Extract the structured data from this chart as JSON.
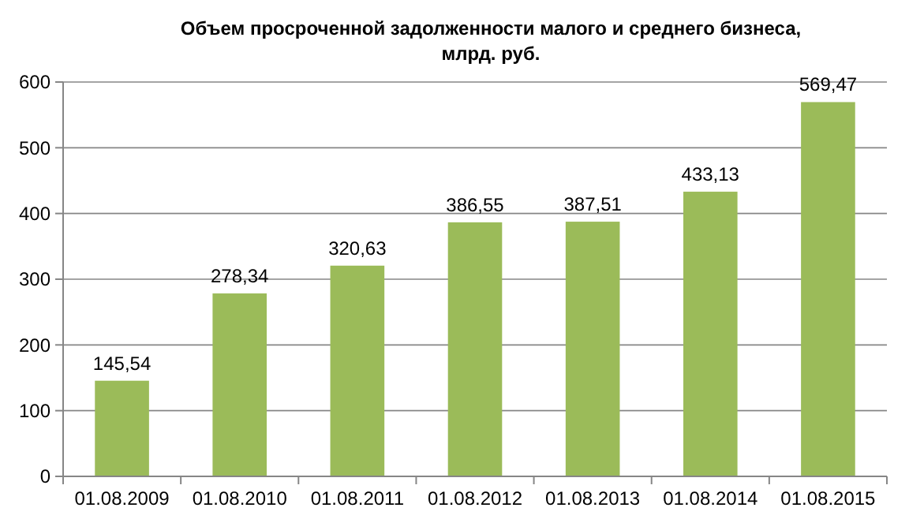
{
  "chart_data": {
    "type": "bar",
    "title": "Объем просроченной задолженности малого и среднего бизнеса, млрд. руб.",
    "categories": [
      "01.08.2009",
      "01.08.2010",
      "01.08.2011",
      "01.08.2012",
      "01.08.2013",
      "01.08.2014",
      "01.08.2015"
    ],
    "values": [
      145.54,
      278.34,
      320.63,
      386.55,
      387.51,
      433.13,
      569.47
    ],
    "value_labels": [
      "145,54",
      "278,34",
      "320,63",
      "386,55",
      "387,51",
      "433,13",
      "569,47"
    ],
    "color": "#9bbb59",
    "ylim": [
      0,
      600
    ],
    "yticks": [
      0,
      100,
      200,
      300,
      400,
      500,
      600
    ],
    "grid": "y"
  }
}
